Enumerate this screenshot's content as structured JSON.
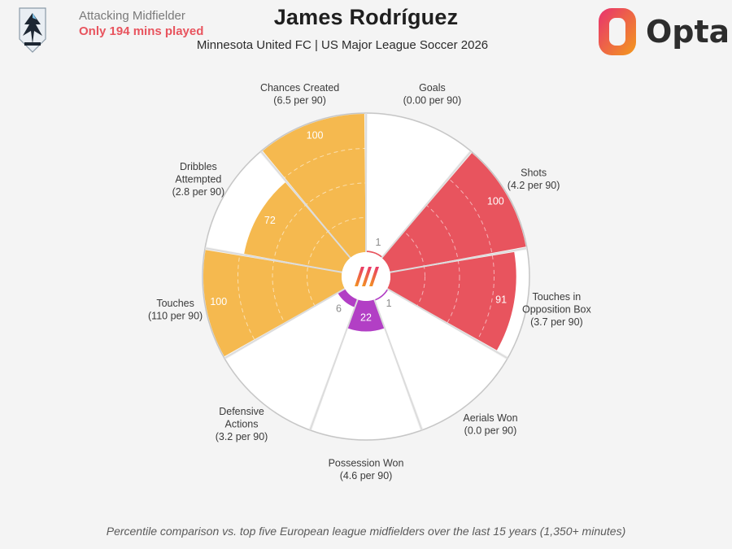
{
  "header": {
    "role": "Attacking Midfielder",
    "minutes_note": "Only 194 mins played",
    "player_name": "James Rodríguez",
    "subtitle": "Minnesota United FC | US Major League Soccer 2026",
    "brand": "Opta"
  },
  "colors": {
    "attacking": "#f5b94f",
    "shooting": "#e8545e",
    "defending": "#b23fc5",
    "background": "#f4f4f4"
  },
  "chart_data": {
    "type": "polar-bar",
    "scale": [
      0,
      100
    ],
    "metrics": [
      {
        "label_lines": [
          "Goals",
          "(0.00 per 90)"
        ],
        "percentile": 1,
        "group": "shooting"
      },
      {
        "label_lines": [
          "Shots",
          "(4.2 per 90)"
        ],
        "percentile": 100,
        "group": "shooting"
      },
      {
        "label_lines": [
          "Touches in",
          "Opposition Box",
          "(3.7 per 90)"
        ],
        "percentile": 91,
        "group": "shooting"
      },
      {
        "label_lines": [
          "Aerials Won",
          "(0.0 per 90)"
        ],
        "percentile": 1,
        "group": "defending"
      },
      {
        "label_lines": [
          "Possession Won",
          "(4.6 per 90)"
        ],
        "percentile": 22,
        "group": "defending"
      },
      {
        "label_lines": [
          "Defensive",
          "Actions",
          "(3.2 per 90)"
        ],
        "percentile": 6,
        "group": "defending"
      },
      {
        "label_lines": [
          "Touches",
          "(110 per 90)"
        ],
        "percentile": 100,
        "group": "attacking"
      },
      {
        "label_lines": [
          "Dribbles",
          "Attempted",
          "(2.8 per 90)"
        ],
        "percentile": 72,
        "group": "attacking"
      },
      {
        "label_lines": [
          "Chances Created",
          "(6.5 per 90)"
        ],
        "percentile": 100,
        "group": "attacking"
      }
    ]
  },
  "footnote": "Percentile comparison vs. top five European league midfielders over the last 15 years (1,350+ minutes)"
}
